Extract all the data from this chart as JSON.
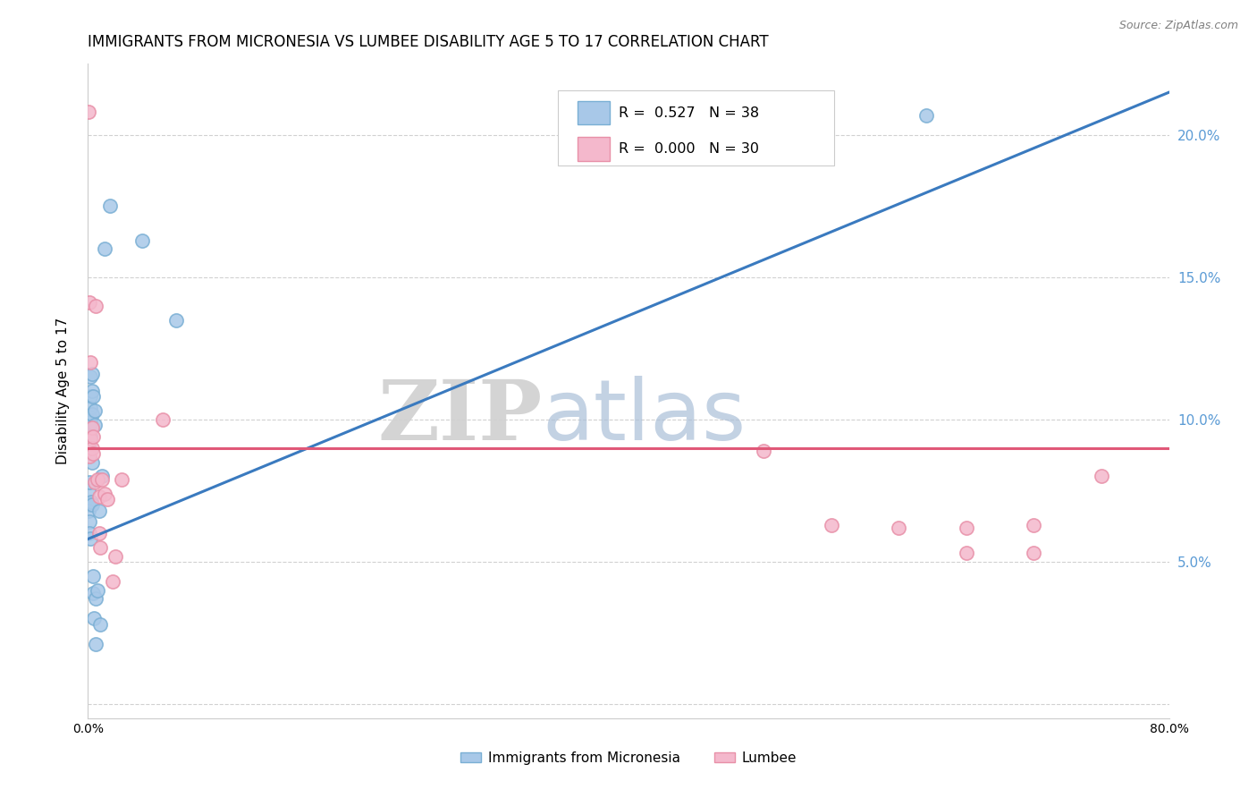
{
  "title": "IMMIGRANTS FROM MICRONESIA VS LUMBEE DISABILITY AGE 5 TO 17 CORRELATION CHART",
  "source": "Source: ZipAtlas.com",
  "ylabel": "Disability Age 5 to 17",
  "xlim": [
    0.0,
    0.8
  ],
  "ylim": [
    -0.005,
    0.225
  ],
  "yticks_right": [
    0.05,
    0.1,
    0.15,
    0.2
  ],
  "ytick_right_labels": [
    "5.0%",
    "10.0%",
    "15.0%",
    "20.0%"
  ],
  "blue_color": "#a8c8e8",
  "blue_edge_color": "#7aafd4",
  "pink_color": "#f4b8cc",
  "pink_edge_color": "#e890a8",
  "blue_line_color": "#3a7abf",
  "pink_line_color": "#e05878",
  "legend_R_blue": "0.527",
  "legend_N_blue": "38",
  "legend_R_pink": "0.000",
  "legend_N_pink": "30",
  "legend_label_blue": "Immigrants from Micronesia",
  "legend_label_pink": "Lumbee",
  "watermark_zip": "ZIP",
  "watermark_atlas": "atlas",
  "blue_x": [
    0.0005,
    0.0005,
    0.0007,
    0.0008,
    0.001,
    0.001,
    0.001,
    0.001,
    0.001,
    0.0015,
    0.0015,
    0.002,
    0.002,
    0.002,
    0.002,
    0.0025,
    0.003,
    0.003,
    0.003,
    0.003,
    0.003,
    0.004,
    0.004,
    0.004,
    0.0045,
    0.005,
    0.005,
    0.006,
    0.006,
    0.007,
    0.008,
    0.009,
    0.01,
    0.012,
    0.016,
    0.04,
    0.065,
    0.62
  ],
  "blue_y": [
    0.075,
    0.07,
    0.068,
    0.064,
    0.101,
    0.097,
    0.09,
    0.078,
    0.06,
    0.115,
    0.108,
    0.104,
    0.099,
    0.094,
    0.058,
    0.071,
    0.116,
    0.11,
    0.102,
    0.085,
    0.07,
    0.108,
    0.045,
    0.039,
    0.03,
    0.103,
    0.098,
    0.021,
    0.037,
    0.04,
    0.068,
    0.028,
    0.08,
    0.16,
    0.175,
    0.163,
    0.135,
    0.207
  ],
  "pink_x": [
    0.0005,
    0.001,
    0.001,
    0.002,
    0.002,
    0.003,
    0.003,
    0.004,
    0.004,
    0.005,
    0.006,
    0.007,
    0.008,
    0.008,
    0.009,
    0.01,
    0.012,
    0.014,
    0.018,
    0.02,
    0.025,
    0.055,
    0.5,
    0.55,
    0.6,
    0.65,
    0.65,
    0.7,
    0.7,
    0.75
  ],
  "pink_y": [
    0.208,
    0.141,
    0.087,
    0.12,
    0.093,
    0.097,
    0.09,
    0.088,
    0.094,
    0.078,
    0.14,
    0.079,
    0.073,
    0.06,
    0.055,
    0.079,
    0.074,
    0.072,
    0.043,
    0.052,
    0.079,
    0.1,
    0.089,
    0.063,
    0.062,
    0.053,
    0.062,
    0.053,
    0.063,
    0.08
  ],
  "blue_trend_x": [
    0.0,
    0.8
  ],
  "blue_trend_y": [
    0.058,
    0.215
  ],
  "pink_trend_y": 0.09,
  "grid_color": "#cccccc",
  "background_color": "#ffffff",
  "title_fontsize": 12,
  "axis_label_fontsize": 11,
  "tick_fontsize": 10,
  "right_tick_color": "#5b9bd5"
}
